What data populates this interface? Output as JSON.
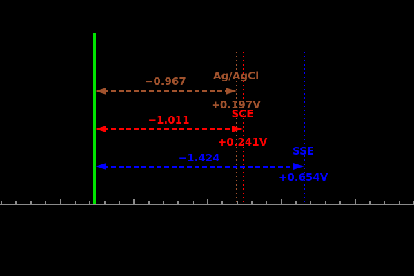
{
  "figure": {
    "description": "reference-electrode potential conversion diagram",
    "axis": {
      "color": "#8a8a8a",
      "min": -1.4,
      "max": 1.4,
      "minor_step": 0.1,
      "major_step": 0.5
    },
    "measured": {
      "color": "#00e400",
      "value_vs_she": -0.77
    },
    "references": [
      {
        "name": "Ag/AgCl",
        "potential_label": "+0.197V",
        "potential_v": 0.197,
        "offset_label": "−0.967",
        "offset_v": -0.967,
        "color": "#a0522d"
      },
      {
        "name": "SCE",
        "potential_label": "+0.241V",
        "potential_v": 0.241,
        "offset_label": "−1.011",
        "offset_v": -1.011,
        "color": "#ff0000"
      },
      {
        "name": "SSE",
        "potential_label": "+0.654V",
        "potential_v": 0.654,
        "offset_label": "−1.424",
        "offset_v": -1.424,
        "color": "#0000ff"
      }
    ]
  }
}
